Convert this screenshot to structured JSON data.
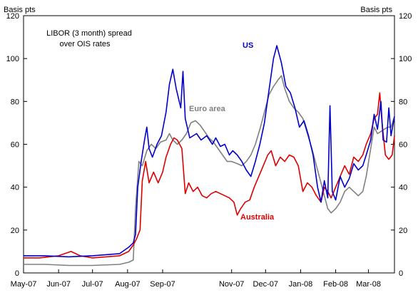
{
  "chart_data": {
    "type": "line",
    "title": "",
    "annotation_lines": [
      "LIBOR (3 month) spread",
      "over OIS rates"
    ],
    "ylabel_left": "Basis pts",
    "ylabel_right": "Basis pts",
    "ylim": [
      0,
      120
    ],
    "yticks": [
      0,
      20,
      40,
      60,
      80,
      100,
      120
    ],
    "xlim": [
      "2007-05-01",
      "2008-03-24"
    ],
    "xticks": [
      {
        "label": "May-07",
        "date": "2007-05-01"
      },
      {
        "label": "Jun-07",
        "date": "2007-06-01"
      },
      {
        "label": "Jul-07",
        "date": "2007-07-01"
      },
      {
        "label": "Aug-07",
        "date": "2007-08-01"
      },
      {
        "label": "Sep-07",
        "date": "2007-09-01"
      },
      {
        "label": "Nov-07",
        "date": "2007-11-01"
      },
      {
        "label": "Dec-07",
        "date": "2007-12-01"
      },
      {
        "label": "Jan-08",
        "date": "2008-01-01"
      },
      {
        "label": "Feb-08",
        "date": "2008-02-01"
      },
      {
        "label": "Mar-08",
        "date": "2008-03-01"
      }
    ],
    "grid": false,
    "series": [
      {
        "name": "US",
        "color": "#0000cc",
        "points": [
          [
            "2007-05-01",
            8
          ],
          [
            "2007-05-20",
            8
          ],
          [
            "2007-06-10",
            7.5
          ],
          [
            "2007-07-01",
            8
          ],
          [
            "2007-07-25",
            9
          ],
          [
            "2007-08-02",
            12
          ],
          [
            "2007-08-06",
            14
          ],
          [
            "2007-08-08",
            18
          ],
          [
            "2007-08-10",
            40
          ],
          [
            "2007-08-13",
            52
          ],
          [
            "2007-08-16",
            62
          ],
          [
            "2007-08-18",
            68
          ],
          [
            "2007-08-20",
            58
          ],
          [
            "2007-08-23",
            54
          ],
          [
            "2007-08-27",
            60
          ],
          [
            "2007-08-31",
            64
          ],
          [
            "2007-09-04",
            75
          ],
          [
            "2007-09-07",
            88
          ],
          [
            "2007-09-10",
            95
          ],
          [
            "2007-09-13",
            86
          ],
          [
            "2007-09-17",
            77
          ],
          [
            "2007-09-19",
            94
          ],
          [
            "2007-09-21",
            72
          ],
          [
            "2007-09-25",
            63
          ],
          [
            "2007-10-01",
            65
          ],
          [
            "2007-10-05",
            62
          ],
          [
            "2007-10-10",
            64
          ],
          [
            "2007-10-15",
            60
          ],
          [
            "2007-10-18",
            63
          ],
          [
            "2007-10-22",
            59
          ],
          [
            "2007-10-26",
            60
          ],
          [
            "2007-10-30",
            55
          ],
          [
            "2007-11-02",
            57
          ],
          [
            "2007-11-06",
            55
          ],
          [
            "2007-11-10",
            52
          ],
          [
            "2007-11-14",
            48
          ],
          [
            "2007-11-18",
            45
          ],
          [
            "2007-11-22",
            52
          ],
          [
            "2007-11-26",
            60
          ],
          [
            "2007-11-30",
            70
          ],
          [
            "2007-12-04",
            85
          ],
          [
            "2007-12-08",
            100
          ],
          [
            "2007-12-11",
            106
          ],
          [
            "2007-12-15",
            98
          ],
          [
            "2007-12-19",
            87
          ],
          [
            "2007-12-23",
            84
          ],
          [
            "2007-12-27",
            77
          ],
          [
            "2007-12-31",
            68
          ],
          [
            "2008-01-04",
            71
          ],
          [
            "2008-01-08",
            64
          ],
          [
            "2008-01-12",
            55
          ],
          [
            "2008-01-16",
            40
          ],
          [
            "2008-01-19",
            33
          ],
          [
            "2008-01-22",
            43
          ],
          [
            "2008-01-25",
            35
          ],
          [
            "2008-01-27",
            78
          ],
          [
            "2008-01-29",
            38
          ],
          [
            "2008-02-01",
            34
          ],
          [
            "2008-02-05",
            45
          ],
          [
            "2008-02-09",
            40
          ],
          [
            "2008-02-13",
            44
          ],
          [
            "2008-02-17",
            51
          ],
          [
            "2008-02-21",
            48
          ],
          [
            "2008-02-25",
            50
          ],
          [
            "2008-02-28",
            55
          ],
          [
            "2008-03-03",
            62
          ],
          [
            "2008-03-06",
            74
          ],
          [
            "2008-03-09",
            67
          ],
          [
            "2008-03-12",
            80
          ],
          [
            "2008-03-14",
            62
          ],
          [
            "2008-03-17",
            61
          ],
          [
            "2008-03-19",
            77
          ],
          [
            "2008-03-21",
            64
          ],
          [
            "2008-03-24",
            73
          ]
        ]
      },
      {
        "name": "Euro area",
        "color": "#808080",
        "points": [
          [
            "2007-05-01",
            4
          ],
          [
            "2007-05-20",
            4
          ],
          [
            "2007-06-10",
            3.5
          ],
          [
            "2007-07-01",
            3.5
          ],
          [
            "2007-07-25",
            4
          ],
          [
            "2007-08-02",
            5
          ],
          [
            "2007-08-06",
            6
          ],
          [
            "2007-08-08",
            30
          ],
          [
            "2007-08-11",
            52
          ],
          [
            "2007-08-14",
            50
          ],
          [
            "2007-08-18",
            57
          ],
          [
            "2007-08-22",
            60
          ],
          [
            "2007-08-26",
            58
          ],
          [
            "2007-08-30",
            61
          ],
          [
            "2007-09-04",
            62
          ],
          [
            "2007-09-07",
            65
          ],
          [
            "2007-09-10",
            62
          ],
          [
            "2007-09-14",
            60
          ],
          [
            "2007-09-18",
            62
          ],
          [
            "2007-09-22",
            65
          ],
          [
            "2007-09-26",
            70
          ],
          [
            "2007-09-30",
            71
          ],
          [
            "2007-10-04",
            69
          ],
          [
            "2007-10-08",
            66
          ],
          [
            "2007-10-12",
            63
          ],
          [
            "2007-10-16",
            61
          ],
          [
            "2007-10-20",
            58
          ],
          [
            "2007-10-24",
            55
          ],
          [
            "2007-10-28",
            52
          ],
          [
            "2007-11-01",
            52
          ],
          [
            "2007-11-06",
            51
          ],
          [
            "2007-11-10",
            50
          ],
          [
            "2007-11-14",
            52
          ],
          [
            "2007-11-18",
            55
          ],
          [
            "2007-11-22",
            60
          ],
          [
            "2007-11-26",
            67
          ],
          [
            "2007-11-30",
            75
          ],
          [
            "2007-12-04",
            83
          ],
          [
            "2007-12-08",
            87
          ],
          [
            "2007-12-12",
            90
          ],
          [
            "2007-12-15",
            92
          ],
          [
            "2007-12-18",
            86
          ],
          [
            "2007-12-22",
            80
          ],
          [
            "2007-12-26",
            77
          ],
          [
            "2007-12-30",
            75
          ],
          [
            "2008-01-03",
            72
          ],
          [
            "2008-01-07",
            65
          ],
          [
            "2008-01-11",
            58
          ],
          [
            "2008-01-15",
            50
          ],
          [
            "2008-01-19",
            42
          ],
          [
            "2008-01-22",
            36
          ],
          [
            "2008-01-25",
            30
          ],
          [
            "2008-01-28",
            28
          ],
          [
            "2008-02-01",
            30
          ],
          [
            "2008-02-05",
            33
          ],
          [
            "2008-02-09",
            38
          ],
          [
            "2008-02-13",
            40
          ],
          [
            "2008-02-17",
            38
          ],
          [
            "2008-02-21",
            36
          ],
          [
            "2008-02-25",
            38
          ],
          [
            "2008-02-28",
            45
          ],
          [
            "2008-03-03",
            58
          ],
          [
            "2008-03-06",
            68
          ],
          [
            "2008-03-09",
            65
          ],
          [
            "2008-03-12",
            66
          ],
          [
            "2008-03-15",
            67
          ],
          [
            "2008-03-18",
            68
          ],
          [
            "2008-03-21",
            68
          ],
          [
            "2008-03-24",
            73
          ]
        ]
      },
      {
        "name": "Australia",
        "color": "#dd0000",
        "points": [
          [
            "2007-05-01",
            7
          ],
          [
            "2007-05-15",
            7
          ],
          [
            "2007-06-01",
            8
          ],
          [
            "2007-06-12",
            10
          ],
          [
            "2007-06-20",
            8
          ],
          [
            "2007-07-01",
            7
          ],
          [
            "2007-07-25",
            8
          ],
          [
            "2007-08-02",
            10
          ],
          [
            "2007-08-06",
            13
          ],
          [
            "2007-08-09",
            16
          ],
          [
            "2007-08-12",
            20
          ],
          [
            "2007-08-14",
            43
          ],
          [
            "2007-08-17",
            52
          ],
          [
            "2007-08-20",
            42
          ],
          [
            "2007-08-24",
            47
          ],
          [
            "2007-08-28",
            42
          ],
          [
            "2007-09-01",
            47
          ],
          [
            "2007-09-04",
            54
          ],
          [
            "2007-09-08",
            60
          ],
          [
            "2007-09-11",
            63
          ],
          [
            "2007-09-14",
            62
          ],
          [
            "2007-09-18",
            58
          ],
          [
            "2007-09-21",
            37
          ],
          [
            "2007-09-24",
            42
          ],
          [
            "2007-09-28",
            38
          ],
          [
            "2007-10-02",
            40
          ],
          [
            "2007-10-06",
            36
          ],
          [
            "2007-10-10",
            35
          ],
          [
            "2007-10-14",
            37
          ],
          [
            "2007-10-18",
            38
          ],
          [
            "2007-10-22",
            37
          ],
          [
            "2007-10-26",
            36
          ],
          [
            "2007-10-30",
            35
          ],
          [
            "2007-11-03",
            33
          ],
          [
            "2007-11-06",
            27
          ],
          [
            "2007-11-09",
            30
          ],
          [
            "2007-11-13",
            33
          ],
          [
            "2007-11-17",
            34
          ],
          [
            "2007-11-21",
            40
          ],
          [
            "2007-11-25",
            45
          ],
          [
            "2007-11-29",
            50
          ],
          [
            "2007-12-03",
            55
          ],
          [
            "2007-12-06",
            57
          ],
          [
            "2007-12-10",
            50
          ],
          [
            "2007-12-14",
            54
          ],
          [
            "2007-12-18",
            52
          ],
          [
            "2007-12-22",
            55
          ],
          [
            "2007-12-26",
            54
          ],
          [
            "2007-12-30",
            50
          ],
          [
            "2008-01-03",
            38
          ],
          [
            "2008-01-07",
            42
          ],
          [
            "2008-01-11",
            40
          ],
          [
            "2008-01-15",
            36
          ],
          [
            "2008-01-19",
            33
          ],
          [
            "2008-01-22",
            40
          ],
          [
            "2008-01-25",
            38
          ],
          [
            "2008-01-28",
            35
          ],
          [
            "2008-02-01",
            40
          ],
          [
            "2008-02-05",
            45
          ],
          [
            "2008-02-09",
            50
          ],
          [
            "2008-02-13",
            46
          ],
          [
            "2008-02-17",
            54
          ],
          [
            "2008-02-21",
            52
          ],
          [
            "2008-02-25",
            55
          ],
          [
            "2008-02-28",
            60
          ],
          [
            "2008-03-03",
            65
          ],
          [
            "2008-03-06",
            72
          ],
          [
            "2008-03-09",
            74
          ],
          [
            "2008-03-11",
            84
          ],
          [
            "2008-03-13",
            70
          ],
          [
            "2008-03-16",
            55
          ],
          [
            "2008-03-19",
            53
          ],
          [
            "2008-03-22",
            55
          ],
          [
            "2008-03-24",
            64
          ]
        ]
      }
    ]
  }
}
